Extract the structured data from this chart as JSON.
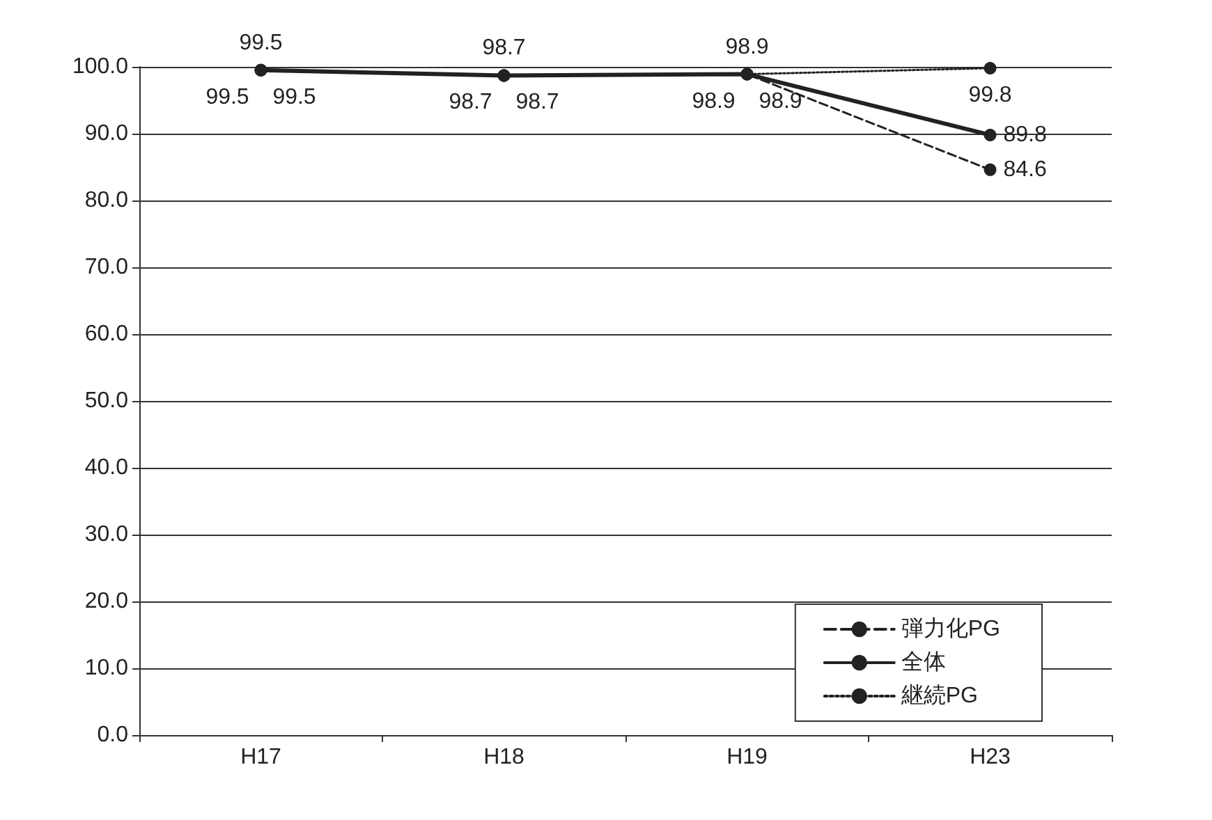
{
  "chart_data": {
    "type": "line",
    "categories": [
      "H17",
      "H18",
      "H19",
      "H23"
    ],
    "series": [
      {
        "name": "弾力化PG",
        "color": "#222222",
        "line_style": "dashed",
        "values": [
          99.5,
          98.7,
          98.9,
          84.6
        ]
      },
      {
        "name": "全体",
        "color": "#222222",
        "line_style": "solid",
        "values": [
          99.5,
          98.7,
          98.9,
          89.8
        ]
      },
      {
        "name": "継続PG",
        "color": "#222222",
        "line_style": "dotted",
        "values": [
          99.5,
          98.7,
          98.9,
          99.8
        ]
      }
    ],
    "ylim": [
      0,
      100
    ],
    "yticks": [
      {
        "value": 0,
        "label": "0.0"
      },
      {
        "value": 10,
        "label": "10.0"
      },
      {
        "value": 20,
        "label": "20.0"
      },
      {
        "value": 30,
        "label": "30.0"
      },
      {
        "value": 40,
        "label": "40.0"
      },
      {
        "value": 50,
        "label": "50.0"
      },
      {
        "value": 60,
        "label": "60.0"
      },
      {
        "value": 70,
        "label": "70.0"
      },
      {
        "value": 80,
        "label": "80.0"
      },
      {
        "value": 90,
        "label": "90.0"
      },
      {
        "value": 100,
        "label": "100.0"
      }
    ],
    "grid": "y",
    "legend": "bottom right",
    "marker": "circle",
    "data_labels": true
  }
}
